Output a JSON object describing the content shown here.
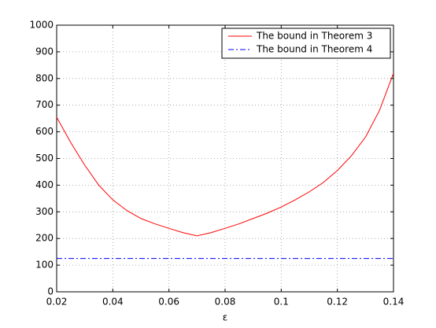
{
  "chart_data": {
    "type": "line",
    "x_label": "ε",
    "x": [
      0.02,
      0.025,
      0.03,
      0.035,
      0.04,
      0.045,
      0.05,
      0.055,
      0.06,
      0.065,
      0.07,
      0.075,
      0.08,
      0.085,
      0.09,
      0.095,
      0.1,
      0.105,
      0.11,
      0.115,
      0.12,
      0.125,
      0.13,
      0.135,
      0.14
    ],
    "series": [
      {
        "name": "The bound in Theorem 3",
        "color": "#ff0000",
        "linestyle": "-",
        "values": [
          655,
          560,
          475,
          400,
          345,
          305,
          275,
          255,
          238,
          222,
          210,
          222,
          238,
          255,
          275,
          295,
          318,
          345,
          375,
          410,
          455,
          510,
          580,
          680,
          820
        ]
      },
      {
        "name": "The bound in Theorem 4",
        "color": "#0000ff",
        "linestyle": "-.",
        "values": [
          125,
          125,
          125,
          125,
          125,
          125,
          125,
          125,
          125,
          125,
          125,
          125,
          125,
          125,
          125,
          125,
          125,
          125,
          125,
          125,
          125,
          125,
          125,
          125,
          125
        ]
      }
    ],
    "xlim": [
      0.02,
      0.14
    ],
    "xticks": [
      0.02,
      0.04,
      0.06,
      0.08,
      0.1,
      0.12,
      0.14
    ],
    "ylim": [
      0,
      1000
    ],
    "yticks": [
      0,
      100,
      200,
      300,
      400,
      500,
      600,
      700,
      800,
      900,
      1000
    ],
    "grid": true,
    "legend": "northeast"
  }
}
